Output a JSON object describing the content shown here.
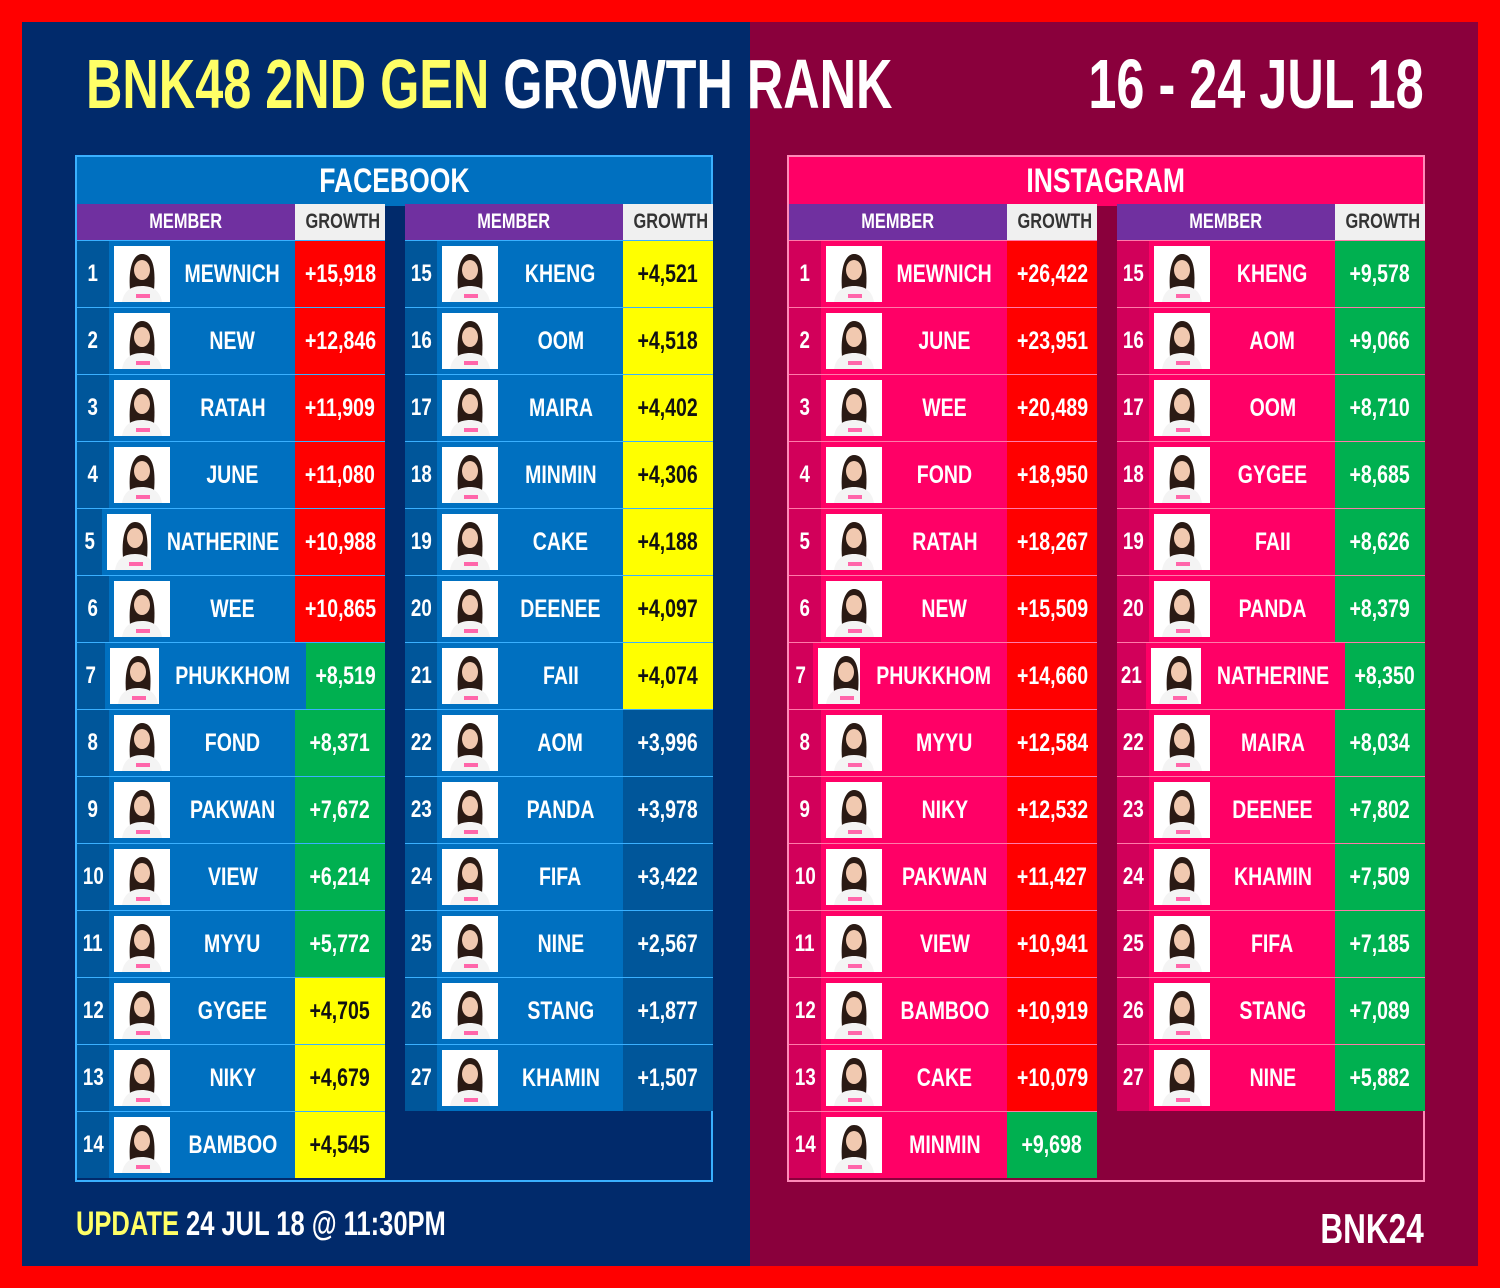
{
  "header": {
    "title_a": "BNK48 2ND GEN",
    "title_b": "GROWTH RANK",
    "date": "16 - 24 JUL 18"
  },
  "colors": {
    "red": "#ff0000",
    "green": "#00b050",
    "yellow": "#ffff00",
    "plain_fb": "#00569a"
  },
  "col_member": "MEMBER",
  "col_growth": "GROWTH",
  "facebook": {
    "title": "FACEBOOK",
    "rows": [
      [
        "1",
        "MEWNICH",
        "+15,918",
        "red"
      ],
      [
        "2",
        "NEW",
        "+12,846",
        "red"
      ],
      [
        "3",
        "RATAH",
        "+11,909",
        "red"
      ],
      [
        "4",
        "JUNE",
        "+11,080",
        "red"
      ],
      [
        "5",
        "NATHERINE",
        "+10,988",
        "red"
      ],
      [
        "6",
        "WEE",
        "+10,865",
        "red"
      ],
      [
        "7",
        "PHUKKHOM",
        "+8,519",
        "green"
      ],
      [
        "8",
        "FOND",
        "+8,371",
        "green"
      ],
      [
        "9",
        "PAKWAN",
        "+7,672",
        "green"
      ],
      [
        "10",
        "VIEW",
        "+6,214",
        "green"
      ],
      [
        "11",
        "MYYU",
        "+5,772",
        "green"
      ],
      [
        "12",
        "GYGEE",
        "+4,705",
        "yellow"
      ],
      [
        "13",
        "NIKY",
        "+4,679",
        "yellow"
      ],
      [
        "14",
        "BAMBOO",
        "+4,545",
        "yellow"
      ],
      [
        "15",
        "KHENG",
        "+4,521",
        "yellow"
      ],
      [
        "16",
        "OOM",
        "+4,518",
        "yellow"
      ],
      [
        "17",
        "MAIRA",
        "+4,402",
        "yellow"
      ],
      [
        "18",
        "MINMIN",
        "+4,306",
        "yellow"
      ],
      [
        "19",
        "CAKE",
        "+4,188",
        "yellow"
      ],
      [
        "20",
        "DEENEE",
        "+4,097",
        "yellow"
      ],
      [
        "21",
        "FAII",
        "+4,074",
        "yellow"
      ],
      [
        "22",
        "AOM",
        "+3,996",
        "plain_fb"
      ],
      [
        "23",
        "PANDA",
        "+3,978",
        "plain_fb"
      ],
      [
        "24",
        "FIFA",
        "+3,422",
        "plain_fb"
      ],
      [
        "25",
        "NINE",
        "+2,567",
        "plain_fb"
      ],
      [
        "26",
        "STANG",
        "+1,877",
        "plain_fb"
      ],
      [
        "27",
        "KHAMIN",
        "+1,507",
        "plain_fb"
      ]
    ]
  },
  "instagram": {
    "title": "INSTAGRAM",
    "rows": [
      [
        "1",
        "MEWNICH",
        "+26,422",
        "red"
      ],
      [
        "2",
        "JUNE",
        "+23,951",
        "red"
      ],
      [
        "3",
        "WEE",
        "+20,489",
        "red"
      ],
      [
        "4",
        "FOND",
        "+18,950",
        "red"
      ],
      [
        "5",
        "RATAH",
        "+18,267",
        "red"
      ],
      [
        "6",
        "NEW",
        "+15,509",
        "red"
      ],
      [
        "7",
        "PHUKKHOM",
        "+14,660",
        "red"
      ],
      [
        "8",
        "MYYU",
        "+12,584",
        "red"
      ],
      [
        "9",
        "NIKY",
        "+12,532",
        "red"
      ],
      [
        "10",
        "PAKWAN",
        "+11,427",
        "red"
      ],
      [
        "11",
        "VIEW",
        "+10,941",
        "red"
      ],
      [
        "12",
        "BAMBOO",
        "+10,919",
        "red"
      ],
      [
        "13",
        "CAKE",
        "+10,079",
        "red"
      ],
      [
        "14",
        "MINMIN",
        "+9,698",
        "green"
      ],
      [
        "15",
        "KHENG",
        "+9,578",
        "green"
      ],
      [
        "16",
        "AOM",
        "+9,066",
        "green"
      ],
      [
        "17",
        "OOM",
        "+8,710",
        "green"
      ],
      [
        "18",
        "GYGEE",
        "+8,685",
        "green"
      ],
      [
        "19",
        "FAII",
        "+8,626",
        "green"
      ],
      [
        "20",
        "PANDA",
        "+8,379",
        "green"
      ],
      [
        "21",
        "NATHERINE",
        "+8,350",
        "green"
      ],
      [
        "22",
        "MAIRA",
        "+8,034",
        "green"
      ],
      [
        "23",
        "DEENEE",
        "+7,802",
        "green"
      ],
      [
        "24",
        "KHAMIN",
        "+7,509",
        "green"
      ],
      [
        "25",
        "FIFA",
        "+7,185",
        "green"
      ],
      [
        "26",
        "STANG",
        "+7,089",
        "green"
      ],
      [
        "27",
        "NINE",
        "+5,882",
        "green"
      ]
    ]
  },
  "footer": {
    "update_label": "UPDATE",
    "update_value": "24 JUL 18 @ 11:30PM",
    "brand": "BNK24"
  }
}
